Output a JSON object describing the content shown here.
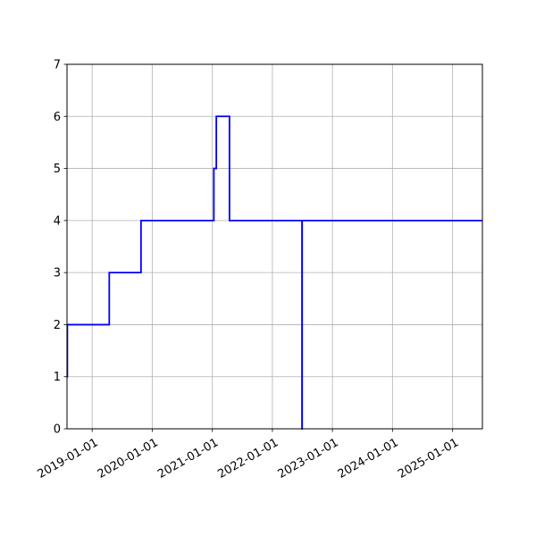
{
  "chart_data": {
    "type": "line",
    "title": "",
    "xlabel": "",
    "ylabel": "",
    "x_axis": {
      "kind": "date",
      "min": "2018-08-01",
      "max": "2025-07-01",
      "ticks": [
        "2019-01-01",
        "2020-01-01",
        "2021-01-01",
        "2022-01-01",
        "2023-01-01",
        "2024-01-01",
        "2025-01-01"
      ]
    },
    "y_axis": {
      "min": 0,
      "max": 7,
      "ticks": [
        "0",
        "1",
        "2",
        "3",
        "4",
        "5",
        "6",
        "7"
      ]
    },
    "grid": true,
    "series": [
      {
        "color": "#0000ff",
        "step": "post",
        "points": [
          {
            "x": "2018-08-01",
            "y": 1
          },
          {
            "x": "2018-08-03",
            "y": 2
          },
          {
            "x": "2019-04-15",
            "y": 3
          },
          {
            "x": "2019-10-25",
            "y": 4
          },
          {
            "x": "2021-01-10",
            "y": 5
          },
          {
            "x": "2021-01-25",
            "y": 6
          },
          {
            "x": "2021-04-15",
            "y": 4
          },
          {
            "x": "2022-06-30",
            "y": 0
          },
          {
            "x": "2022-07-01",
            "y": 4
          },
          {
            "x": "2025-07-01",
            "y": 4
          }
        ]
      }
    ]
  }
}
